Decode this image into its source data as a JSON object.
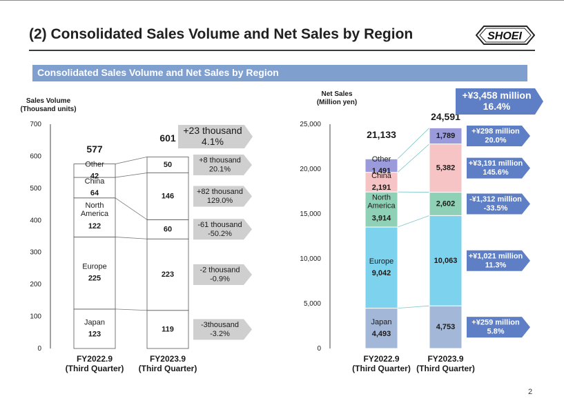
{
  "page": {
    "title": "(2) Consolidated Sales Volume and Net Sales by Region",
    "subtitle": "Consolidated Sales Volume and Net Sales by Region",
    "logo_text": "SHOEI",
    "page_number": "2"
  },
  "chart_data": [
    {
      "type": "bar",
      "stacked": true,
      "ylabel": "Sales Volume\n(Thousand units)",
      "ylim": [
        0,
        700
      ],
      "yticks": [
        "0",
        "100",
        "200",
        "300",
        "400",
        "500",
        "600",
        "700"
      ],
      "ytick_values": [
        0,
        100,
        200,
        300,
        400,
        500,
        600,
        700
      ],
      "categories": [
        "FY2022.9\n(Third Quarter)",
        "FY2023.9\n(Third Quarter)"
      ],
      "totals": [
        "577",
        "601"
      ],
      "series": [
        {
          "name": "Japan",
          "values": [
            123,
            119
          ],
          "labels": [
            "123",
            "119"
          ]
        },
        {
          "name": "Europe",
          "values": [
            225,
            223
          ],
          "labels": [
            "225",
            "223"
          ]
        },
        {
          "name": "North\nAmerica",
          "values": [
            122,
            60
          ],
          "labels": [
            "122",
            "60"
          ]
        },
        {
          "name": "China",
          "values": [
            64,
            146
          ],
          "labels": [
            "64",
            "146"
          ]
        },
        {
          "name": "Other",
          "values": [
            42,
            50
          ],
          "labels": [
            "42",
            "50"
          ]
        }
      ],
      "total_change": "+23 thousand\n4.1%",
      "changes": [
        "-3thousand\n-3.2%",
        "-2 thousand\n-0.9%",
        "-61 thousand\n-50.2%",
        "+82 thousand\n129.0%",
        "+8 thousand\n20.1%"
      ]
    },
    {
      "type": "bar",
      "stacked": true,
      "ylabel": "Net Sales\n(Million yen)",
      "ylim": [
        0,
        25000
      ],
      "yticks": [
        "0",
        "5,000",
        "10,000",
        "15,000",
        "20,000",
        "25,000"
      ],
      "ytick_values": [
        0,
        5000,
        10000,
        15000,
        20000,
        25000
      ],
      "categories": [
        "FY2022.9\n(Third Quarter)",
        "FY2023.9\n(Third Quarter)"
      ],
      "totals": [
        "21,133",
        "24,591"
      ],
      "series": [
        {
          "name": "Japan",
          "values": [
            4493,
            4753
          ],
          "labels": [
            "4,493",
            "4,753"
          ],
          "color": "#a3b7d9"
        },
        {
          "name": "Europe",
          "values": [
            9042,
            10063
          ],
          "labels": [
            "9,042",
            "10,063"
          ],
          "color": "#7dd3ee"
        },
        {
          "name": "North\nAmerica",
          "values": [
            3914,
            2602
          ],
          "labels": [
            "3,914",
            "2,602"
          ],
          "color": "#8fd1b6"
        },
        {
          "name": "China",
          "values": [
            2191,
            5382
          ],
          "labels": [
            "2,191",
            "5,382"
          ],
          "color": "#f6c4c4"
        },
        {
          "name": "Other",
          "values": [
            1491,
            1789
          ],
          "labels": [
            "1,491",
            "1,789"
          ],
          "color": "#9b9bdc"
        }
      ],
      "total_change": "+¥3,458 million\n16.4%",
      "changes": [
        "+¥259 million\n5.8%",
        "+¥1,021 million\n11.3%",
        "-¥1,312 million\n-33.5%",
        "+¥3,191 million\n145.6%",
        "+¥298 million\n20.0%"
      ]
    }
  ]
}
